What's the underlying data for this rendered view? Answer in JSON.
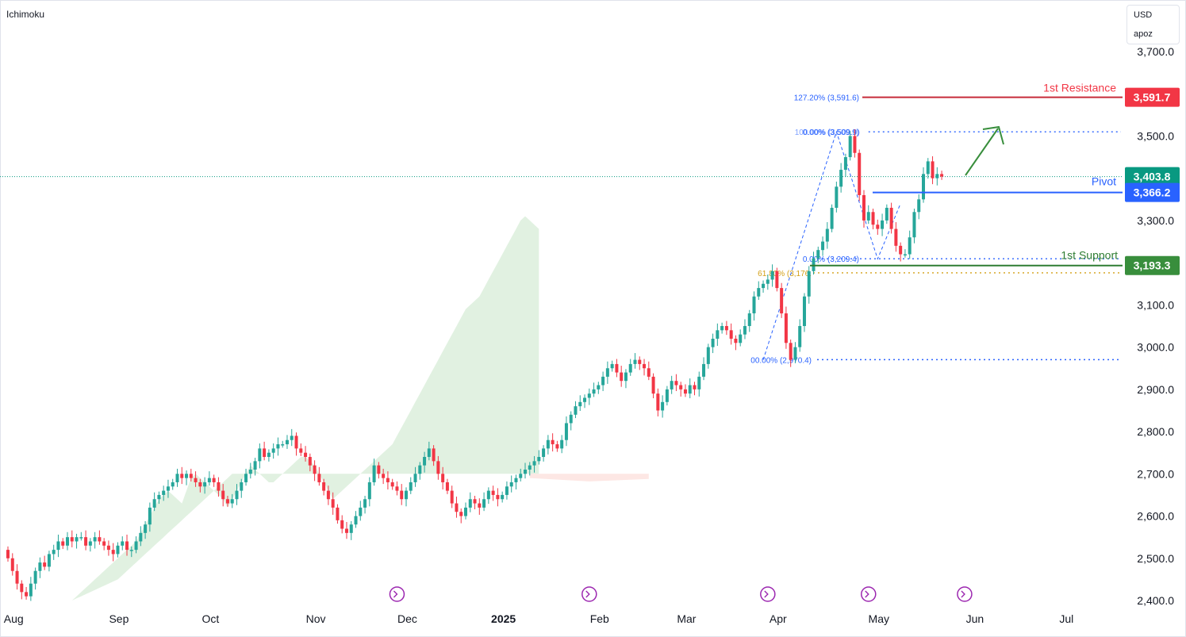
{
  "indicator": "Ichimoku",
  "currency": {
    "unit": "USD",
    "sub": "apoz"
  },
  "colors": {
    "up": "#26a69a",
    "down": "#f23645",
    "cloud": "#c8e6c9",
    "cloud_red": "#fbd7d2",
    "resistance": "#c62c3a",
    "resistance_tag": "#f23645",
    "pivot": "#2962ff",
    "support": "#2e7d32",
    "support_tag": "#388e3c",
    "current_tag": "#089981",
    "fib_blue": "#2962ff",
    "fib_orange": "#d4a017",
    "arrow": "#388e3c",
    "event": "#9c27b0"
  },
  "chart_data": {
    "type": "candlestick",
    "title": "",
    "ylim": [
      2400,
      3750
    ],
    "y_ticks": [
      2400,
      2500,
      2600,
      2700,
      2800,
      2900,
      3000,
      3100,
      3200,
      3300,
      3400,
      3500,
      3600,
      3700
    ],
    "y_tick_labels": [
      "2,400.0",
      "2,500.0",
      "2,600.0",
      "2,700.0",
      "2,800.0",
      "2,900.0",
      "3,000.0",
      "3,100.0",
      "3,200.0",
      "3,300.0",
      "3,400.0",
      "3,500.0",
      "3,600.0",
      "3,700.0"
    ],
    "x_labels": [
      {
        "label": "Aug",
        "index": -1
      },
      {
        "label": "Sep",
        "index": 22
      },
      {
        "label": "Oct",
        "index": 42
      },
      {
        "label": "Nov",
        "index": 65
      },
      {
        "label": "Dec",
        "index": 85
      },
      {
        "label": "2025",
        "index": 106,
        "bold": true
      },
      {
        "label": "Feb",
        "index": 127
      },
      {
        "label": "Mar",
        "index": 146
      },
      {
        "label": "Apr",
        "index": 166
      },
      {
        "label": "May",
        "index": 188
      },
      {
        "label": "Jun",
        "index": 209
      },
      {
        "label": "Jul",
        "index": 229
      }
    ],
    "closes": [
      2500,
      2470,
      2440,
      2420,
      2410,
      2440,
      2470,
      2490,
      2480,
      2510,
      2520,
      2540,
      2530,
      2550,
      2540,
      2550,
      2550,
      2530,
      2540,
      2550,
      2540,
      2530,
      2520,
      2510,
      2530,
      2540,
      2520,
      2520,
      2540,
      2560,
      2580,
      2620,
      2640,
      2650,
      2660,
      2670,
      2680,
      2700,
      2690,
      2700,
      2690,
      2680,
      2670,
      2680,
      2690,
      2680,
      2660,
      2640,
      2630,
      2640,
      2660,
      2680,
      2700,
      2710,
      2730,
      2760,
      2740,
      2750,
      2760,
      2770,
      2770,
      2780,
      2790,
      2760,
      2750,
      2740,
      2720,
      2700,
      2680,
      2660,
      2640,
      2620,
      2590,
      2570,
      2560,
      2580,
      2600,
      2620,
      2640,
      2680,
      2720,
      2700,
      2690,
      2680,
      2670,
      2660,
      2640,
      2660,
      2680,
      2700,
      2720,
      2740,
      2760,
      2730,
      2700,
      2680,
      2660,
      2630,
      2610,
      2600,
      2620,
      2640,
      2630,
      2620,
      2640,
      2660,
      2650,
      2640,
      2650,
      2670,
      2680,
      2690,
      2700,
      2710,
      2720,
      2730,
      2740,
      2760,
      2780,
      2770,
      2760,
      2780,
      2820,
      2840,
      2860,
      2870,
      2880,
      2890,
      2900,
      2910,
      2930,
      2950,
      2960,
      2940,
      2920,
      2940,
      2960,
      2970,
      2960,
      2950,
      2930,
      2890,
      2850,
      2870,
      2900,
      2920,
      2910,
      2900,
      2890,
      2910,
      2900,
      2930,
      2960,
      3000,
      3020,
      3040,
      3050,
      3040,
      3020,
      3010,
      3030,
      3050,
      3080,
      3120,
      3140,
      3150,
      3160,
      3180,
      3140,
      3080,
      3010,
      2970,
      3000,
      3050,
      3120,
      3180,
      3210,
      3230,
      3250,
      3280,
      3330,
      3380,
      3420,
      3450,
      3500,
      3460,
      3360,
      3300,
      3320,
      3290,
      3280,
      3300,
      3330,
      3280,
      3240,
      3220,
      3220,
      3260,
      3320,
      3350,
      3410,
      3440,
      3400,
      3410,
      3404
    ],
    "cloud_top": [
      2400,
      2410,
      2420,
      2430,
      2440,
      2450,
      2460,
      2470,
      2480,
      2490,
      2500,
      2510,
      2520,
      2530,
      2540,
      2560,
      2580,
      2600,
      2620,
      2640,
      2650,
      2660,
      2650,
      2640,
      2630,
      2660,
      2690,
      2700,
      2690,
      2680,
      2670,
      2660,
      2650,
      2640,
      2620,
      2640,
      2660,
      2680,
      2700,
      2720,
      2710,
      2700,
      2690,
      2680,
      2680,
      2690,
      2700,
      2710,
      2720,
      2730,
      2740,
      2740,
      2730,
      2720,
      2700,
      2680,
      2660,
      2640,
      2650,
      2660,
      2670,
      2680,
      2690,
      2700,
      2710,
      2720,
      2730,
      2740,
      2750,
      2760,
      2770,
      2790,
      2810,
      2830,
      2850,
      2870,
      2890,
      2910,
      2930,
      2950,
      2970,
      2990,
      3010,
      3030,
      3050,
      3070,
      3090,
      3100,
      3110,
      3120,
      3140,
      3160,
      3180,
      3200,
      3220,
      3240,
      3260,
      3280,
      3300,
      3310,
      3300,
      3290,
      3280
    ],
    "cloud_bottom": [
      2400,
      2405,
      2410,
      2415,
      2420,
      2425,
      2430,
      2435,
      2440,
      2445,
      2450,
      2460,
      2470,
      2480,
      2490,
      2500,
      2510,
      2520,
      2530,
      2540,
      2550,
      2560,
      2570,
      2580,
      2590,
      2600,
      2610,
      2620,
      2630,
      2640,
      2650,
      2660,
      2670,
      2680,
      2690,
      2700,
      2700,
      2700,
      2700,
      2700,
      2700,
      2700,
      2700,
      2700,
      2700,
      2700,
      2700,
      2700,
      2700,
      2700,
      2700,
      2700,
      2700,
      2700,
      2700,
      2700,
      2700,
      2700,
      2700,
      2700,
      2700,
      2700,
      2700,
      2700,
      2700,
      2700,
      2700,
      2700,
      2700,
      2700,
      2700,
      2700,
      2700,
      2700,
      2700,
      2700,
      2700,
      2700,
      2700,
      2700,
      2700,
      2700,
      2700,
      2700,
      2700,
      2700,
      2700,
      2700,
      2700,
      2700,
      2700,
      2700,
      2700,
      2700,
      2700,
      2700,
      2700,
      2700,
      2700,
      2700,
      2700,
      2700,
      2700
    ],
    "levels": {
      "resistance": {
        "label": "1st Resistance",
        "value": 3591.7,
        "tag": "3,591.7"
      },
      "pivot": {
        "label": "Pivot",
        "value": 3366.2,
        "tag": "3,366.2"
      },
      "support": {
        "label": "1st Support",
        "value": 3193.3,
        "tag": "3,193.3"
      },
      "current": {
        "value": 3403.8,
        "tag": "3,403.8"
      }
    },
    "fib_labels": [
      {
        "text": "127.20% (3,591.6)",
        "value": 3591.6,
        "color": "fib_blue"
      },
      {
        "text": "0.00% (3,509.9)",
        "value": 3509.9,
        "color": "fib_blue",
        "overlap": "100.00% (3,509.9)"
      },
      {
        "text": "0.00% (3,209.4)",
        "value": 3209.4,
        "color": "fib_blue"
      },
      {
        "text": "61.80% (3,176.",
        "value": 3176,
        "color": "fib_orange"
      },
      {
        "text": "00.00% (2,970.4)",
        "value": 2970.4,
        "color": "fib_blue"
      }
    ],
    "fib_dotted": [
      3509.9,
      3209.4,
      2970.4,
      3176
    ],
    "event_markers": [
      85,
      127,
      166,
      188,
      209
    ]
  }
}
